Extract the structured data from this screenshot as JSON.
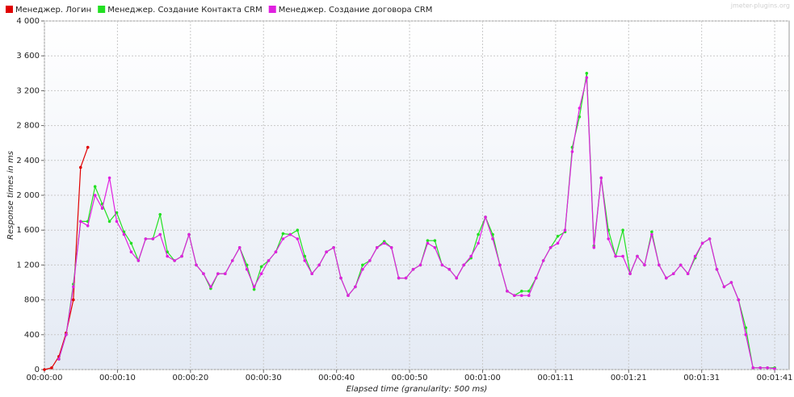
{
  "chart_data": {
    "type": "line",
    "x_label": "Elapsed time (granularity: 500 ms)",
    "y_label": "Response times in ms",
    "watermark": "jmeter-plugins.org",
    "legend": "top-left",
    "grid": true,
    "xlim": [
      0,
      103
    ],
    "xticks": [
      {
        "value": 0,
        "label": "00:00:00"
      },
      {
        "value": 10.1,
        "label": "00:00:10"
      },
      {
        "value": 20.2,
        "label": "00:00:20"
      },
      {
        "value": 30.3,
        "label": "00:00:30"
      },
      {
        "value": 40.4,
        "label": "00:00:40"
      },
      {
        "value": 50.5,
        "label": "00:00:50"
      },
      {
        "value": 60.6,
        "label": "00:01:00"
      },
      {
        "value": 70.7,
        "label": "00:01:11"
      },
      {
        "value": 80.8,
        "label": "00:01:21"
      },
      {
        "value": 90.9,
        "label": "00:01:31"
      },
      {
        "value": 101,
        "label": "00:01:41"
      }
    ],
    "ylim": [
      0,
      4000
    ],
    "yticks": [
      0,
      400,
      800,
      {
        "value": 1200,
        "label": "1 200"
      },
      {
        "value": 1600,
        "label": "1 600"
      },
      {
        "value": 2000,
        "label": "2 000"
      },
      {
        "value": 2400,
        "label": "2 400"
      },
      {
        "value": 2800,
        "label": "2 800"
      },
      {
        "value": 3200,
        "label": "3 200"
      },
      {
        "value": 3600,
        "label": "3 600"
      },
      {
        "value": 4000,
        "label": "4 000"
      }
    ],
    "x": [
      0,
      1,
      2,
      3,
      4,
      5,
      6,
      7,
      8,
      9,
      10,
      11,
      12,
      13,
      14,
      15,
      16,
      17,
      18,
      19,
      20,
      21,
      22,
      23,
      24,
      25,
      26,
      27,
      28,
      29,
      30,
      31,
      32,
      33,
      34,
      35,
      36,
      37,
      38,
      39,
      40,
      41,
      42,
      43,
      44,
      45,
      46,
      47,
      48,
      49,
      50,
      51,
      52,
      53,
      54,
      55,
      56,
      57,
      58,
      59,
      60,
      61,
      62,
      63,
      64,
      65,
      66,
      67,
      68,
      69,
      70,
      71,
      72,
      73,
      74,
      75,
      76,
      77,
      78,
      79,
      80,
      81,
      82,
      83,
      84,
      85,
      86,
      87,
      88,
      89,
      90,
      91,
      92,
      93,
      94,
      95,
      96,
      97,
      98,
      99,
      100,
      101
    ],
    "series": [
      {
        "name": "Менеджер. Логин",
        "color": "#e00000",
        "values": [
          0,
          20,
          150,
          420,
          800,
          2320,
          2550,
          null,
          null,
          null,
          null,
          null,
          null,
          null,
          null,
          null,
          null,
          null,
          null,
          null,
          null,
          null,
          null,
          null,
          null,
          null,
          null,
          null,
          null,
          null,
          null,
          null,
          null,
          null,
          null,
          null,
          null,
          null,
          null,
          null,
          null,
          null,
          null,
          null,
          null,
          null,
          null,
          null,
          null,
          null,
          null,
          null,
          null,
          null,
          null,
          null,
          null,
          null,
          null,
          null,
          null,
          null,
          null,
          null,
          null,
          null,
          null,
          null,
          null,
          null,
          null,
          null,
          null,
          null,
          null,
          null,
          null,
          null,
          null,
          null,
          null,
          null,
          null,
          null,
          null,
          null,
          null,
          null,
          null,
          null,
          null,
          null,
          null,
          null,
          null,
          null,
          null,
          null,
          null,
          null,
          null,
          null
        ]
      },
      {
        "name": "Менеджер. Создание Контакта CRM",
        "color": "#22e022",
        "values": [
          null,
          null,
          120,
          400,
          980,
          1700,
          1700,
          2100,
          1900,
          1700,
          1800,
          1580,
          1450,
          1250,
          1500,
          1500,
          1780,
          1350,
          1250,
          1300,
          1550,
          1200,
          1100,
          930,
          1100,
          1100,
          1250,
          1400,
          1200,
          920,
          1180,
          1250,
          1350,
          1560,
          1550,
          1600,
          1300,
          1100,
          1200,
          1350,
          1400,
          1050,
          850,
          950,
          1200,
          1250,
          1400,
          1470,
          1400,
          1050,
          1050,
          1150,
          1200,
          1480,
          1480,
          1200,
          1150,
          1050,
          1200,
          1280,
          1550,
          1750,
          1550,
          1200,
          900,
          850,
          900,
          900,
          1050,
          1250,
          1400,
          1530,
          1580,
          2550,
          2900,
          3400,
          1420,
          2200,
          1600,
          1300,
          1600,
          1100,
          1300,
          1200,
          1580,
          1200,
          1050,
          1100,
          1200,
          1100,
          1280,
          1450,
          1500,
          1150,
          950,
          1000,
          800,
          480,
          20,
          20,
          20,
          20
        ]
      },
      {
        "name": "Менеджер. Создание договора CRM",
        "color": "#e020e0",
        "values": [
          null,
          null,
          120,
          400,
          950,
          1700,
          1650,
          2000,
          1850,
          2200,
          1700,
          1550,
          1350,
          1250,
          1500,
          1500,
          1550,
          1300,
          1250,
          1300,
          1550,
          1200,
          1100,
          950,
          1100,
          1100,
          1250,
          1400,
          1150,
          950,
          1100,
          1250,
          1350,
          1500,
          1550,
          1500,
          1250,
          1100,
          1200,
          1350,
          1400,
          1050,
          850,
          950,
          1150,
          1250,
          1400,
          1450,
          1400,
          1050,
          1050,
          1150,
          1200,
          1450,
          1400,
          1200,
          1150,
          1050,
          1200,
          1300,
          1450,
          1750,
          1500,
          1200,
          900,
          850,
          850,
          850,
          1050,
          1250,
          1400,
          1450,
          1600,
          2500,
          3000,
          3350,
          1400,
          2200,
          1500,
          1300,
          1300,
          1100,
          1300,
          1200,
          1550,
          1200,
          1050,
          1100,
          1200,
          1100,
          1300,
          1450,
          1500,
          1150,
          950,
          1000,
          800,
          400,
          20,
          20,
          20,
          10
        ]
      }
    ]
  }
}
